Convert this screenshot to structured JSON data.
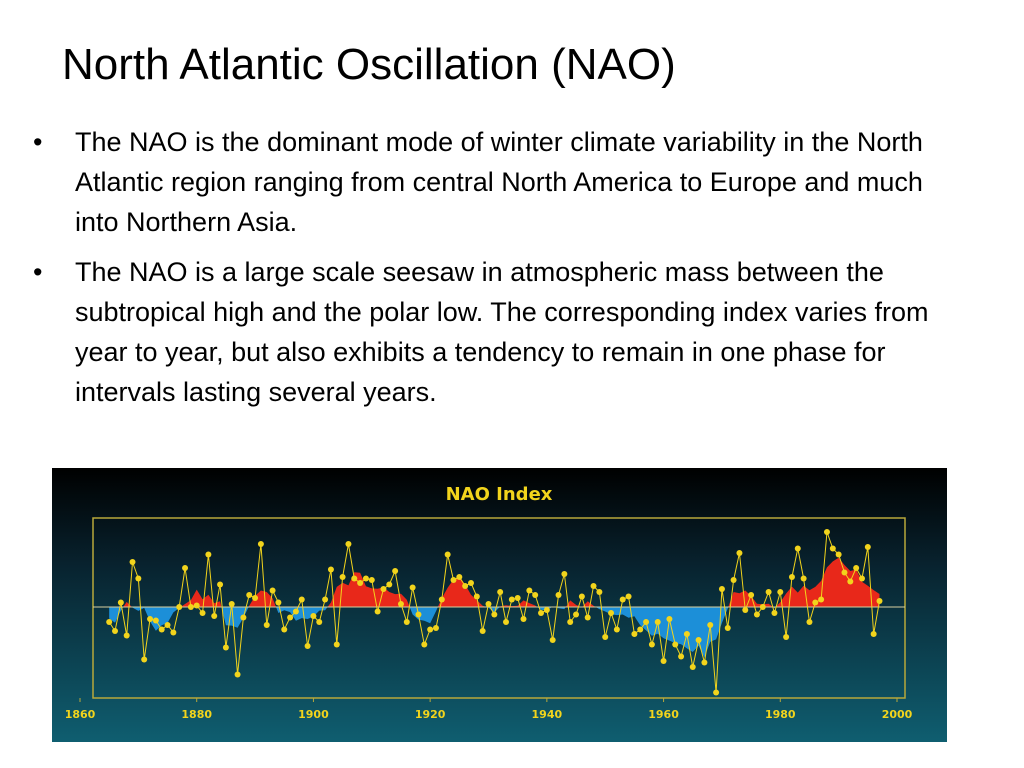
{
  "title": "North Atlantic Oscillation (NAO)",
  "bullets": [
    "The NAO is the dominant mode of winter climate variability in the North Atlantic region ranging from central North America to Europe and much into Northern Asia.",
    "The NAO is a large scale seesaw in atmospheric mass between the subtropical high and the polar low. The corresponding index varies from year to year, but also exhibits a tendency to remain in one phase for intervals lasting several years."
  ],
  "chart_data": {
    "type": "line",
    "title": "NAO  Index",
    "x": [
      1865,
      1866,
      1867,
      1868,
      1869,
      1870,
      1871,
      1872,
      1873,
      1874,
      1875,
      1876,
      1877,
      1878,
      1879,
      1880,
      1881,
      1882,
      1883,
      1884,
      1885,
      1886,
      1887,
      1888,
      1889,
      1890,
      1891,
      1892,
      1893,
      1894,
      1895,
      1896,
      1897,
      1898,
      1899,
      1900,
      1901,
      1902,
      1903,
      1904,
      1905,
      1906,
      1907,
      1908,
      1909,
      1910,
      1911,
      1912,
      1913,
      1914,
      1915,
      1916,
      1917,
      1918,
      1919,
      1920,
      1921,
      1922,
      1923,
      1924,
      1925,
      1926,
      1927,
      1928,
      1929,
      1930,
      1931,
      1932,
      1933,
      1934,
      1935,
      1936,
      1937,
      1938,
      1939,
      1940,
      1941,
      1942,
      1943,
      1944,
      1945,
      1946,
      1947,
      1948,
      1949,
      1950,
      1951,
      1952,
      1953,
      1954,
      1955,
      1956,
      1957,
      1958,
      1959,
      1960,
      1961,
      1962,
      1963,
      1964,
      1965,
      1966,
      1967,
      1968,
      1969,
      1970,
      1971,
      1972,
      1973,
      1974,
      1975,
      1976,
      1977,
      1978,
      1979,
      1980,
      1981,
      1982,
      1983,
      1984,
      1985,
      1986,
      1987,
      1988,
      1989,
      1990,
      1991,
      1992,
      1993,
      1994,
      1995,
      1996,
      1997
    ],
    "values": [
      -1.0,
      -1.6,
      0.3,
      -1.9,
      3.0,
      1.9,
      -3.5,
      -0.8,
      -0.9,
      -1.5,
      -1.2,
      -1.7,
      0.0,
      2.6,
      0.0,
      0.1,
      -0.4,
      3.5,
      -0.6,
      1.5,
      -2.7,
      0.2,
      -4.5,
      -0.7,
      0.8,
      0.6,
      4.2,
      -1.2,
      1.1,
      0.3,
      -1.5,
      -0.7,
      -0.3,
      0.5,
      -2.6,
      -0.6,
      -1.0,
      0.5,
      2.5,
      -2.5,
      2.0,
      4.2,
      1.9,
      1.6,
      1.9,
      1.8,
      -0.3,
      1.2,
      1.5,
      2.4,
      0.2,
      -1.0,
      1.3,
      -0.5,
      -2.5,
      -1.5,
      -1.4,
      0.5,
      3.5,
      1.8,
      2.0,
      1.4,
      1.6,
      0.7,
      -1.6,
      0.2,
      -0.5,
      1.0,
      -1.0,
      0.5,
      0.6,
      -0.8,
      1.1,
      0.8,
      -0.4,
      -0.2,
      -2.2,
      0.8,
      2.2,
      -1.0,
      -0.5,
      0.7,
      -0.7,
      1.4,
      1.0,
      -2.0,
      -0.4,
      -1.5,
      0.5,
      0.7,
      -1.8,
      -1.5,
      -1.0,
      -2.5,
      -1.0,
      -3.6,
      -0.8,
      -2.5,
      -3.3,
      -1.8,
      -4.0,
      -2.2,
      -3.7,
      -1.2,
      -5.7,
      1.2,
      -1.4,
      1.8,
      3.6,
      -0.2,
      0.8,
      -0.5,
      0.0,
      1.0,
      -0.4,
      1.0,
      -2.0,
      2.0,
      3.9,
      1.9,
      -1.0,
      0.3,
      0.5,
      5.0,
      3.9,
      3.5,
      2.3,
      1.7,
      2.6,
      1.9,
      4.0,
      -1.8,
      0.4
    ],
    "xlim": [
      1860,
      2000
    ],
    "xticks": [
      1860,
      1880,
      1900,
      1920,
      1940,
      1960,
      1980,
      2000
    ],
    "ylim": [
      -6,
      6
    ],
    "color": "#f2d41c",
    "positive_color": "#e8281a",
    "negative_color": "#1c8fd8"
  }
}
